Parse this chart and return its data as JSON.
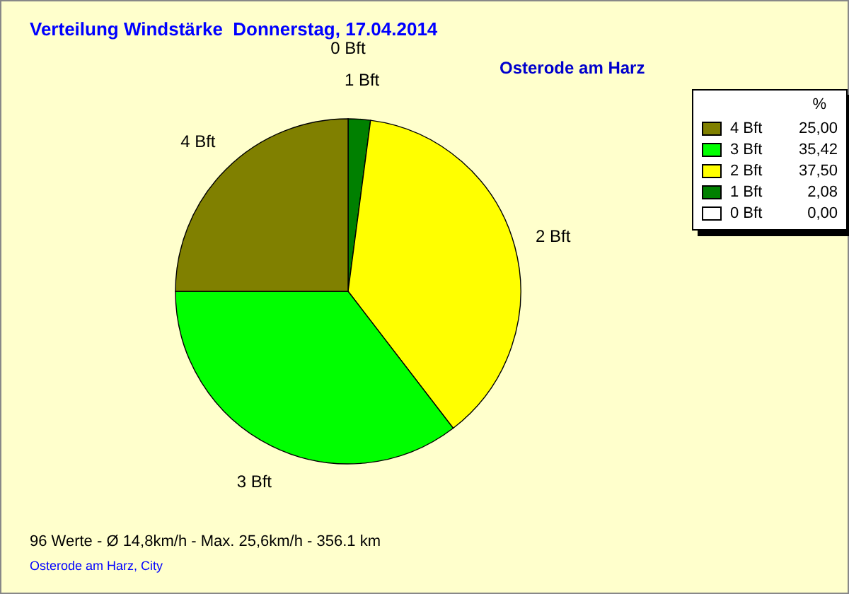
{
  "chart_data": {
    "type": "pie",
    "title": "Verteilung Windstärke  Donnerstag, 17.04.2014",
    "subtitle": "Osterode am Harz",
    "categories": [
      "0 Bft",
      "1 Bft",
      "2 Bft",
      "3 Bft",
      "4 Bft"
    ],
    "values": [
      0,
      2.08,
      37.5,
      35.42,
      25
    ],
    "value_labels": [
      "0,00",
      "2,08",
      "37,50",
      "35,42",
      "25,00"
    ],
    "colors": [
      "#ffffff",
      "#008000",
      "#ffff00",
      "#00ff00",
      "#808000"
    ],
    "legend_title": "%",
    "legend": "top right",
    "annotations": [
      "96 Werte   -   Ø 14,8km/h  -  Max. 25,6km/h   -   356.1 km",
      "Osterode am Harz, City"
    ]
  }
}
